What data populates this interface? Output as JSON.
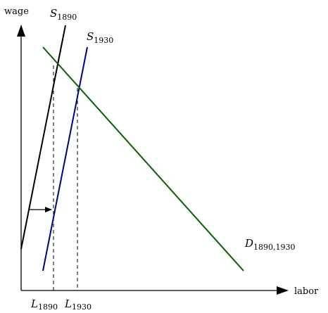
{
  "axes": {
    "y_label": "wage",
    "x_label": "labor"
  },
  "curves": {
    "s1890": {
      "letter": "S",
      "subscript": "1890",
      "color": "#000000"
    },
    "s1930": {
      "letter": "S",
      "subscript": "1930",
      "color": "#00008b"
    },
    "demand": {
      "letter": "D",
      "subscript": "1890,1930",
      "color": "#006400"
    }
  },
  "ticks": {
    "l1890": {
      "letter": "L",
      "subscript": "1890"
    },
    "l1930": {
      "letter": "L",
      "subscript": "1930"
    }
  },
  "shift_arrow": {
    "direction": "right"
  }
}
